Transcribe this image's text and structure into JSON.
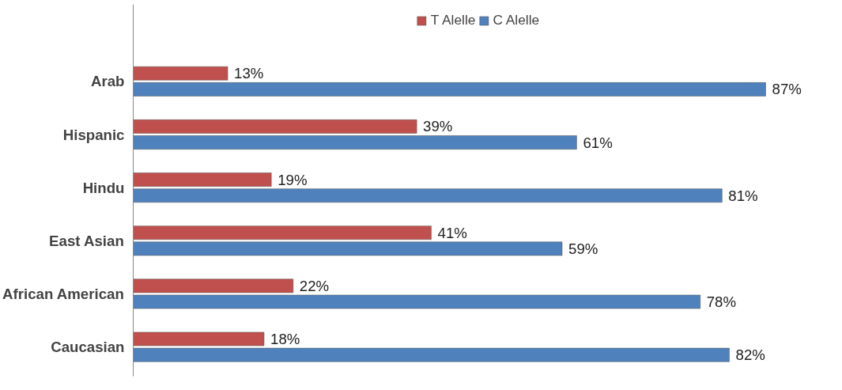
{
  "chart_data": {
    "type": "bar",
    "orientation": "horizontal",
    "categories": [
      "Arab",
      "Hispanic",
      "Hindu",
      "East Asian",
      "African American",
      "Caucasian"
    ],
    "series": [
      {
        "name": "T Alelle",
        "color": "#c0504d",
        "values": [
          13,
          39,
          19,
          41,
          22,
          18
        ],
        "value_labels": [
          "13%",
          "39%",
          "19%",
          "41%",
          "22%",
          "18%"
        ]
      },
      {
        "name": "C Alelle",
        "color": "#4f81bd",
        "values": [
          87,
          61,
          81,
          59,
          78,
          82
        ],
        "value_labels": [
          "87%",
          "61%",
          "81%",
          "59%",
          "78%",
          "82%"
        ]
      }
    ],
    "legend": "top"
  }
}
